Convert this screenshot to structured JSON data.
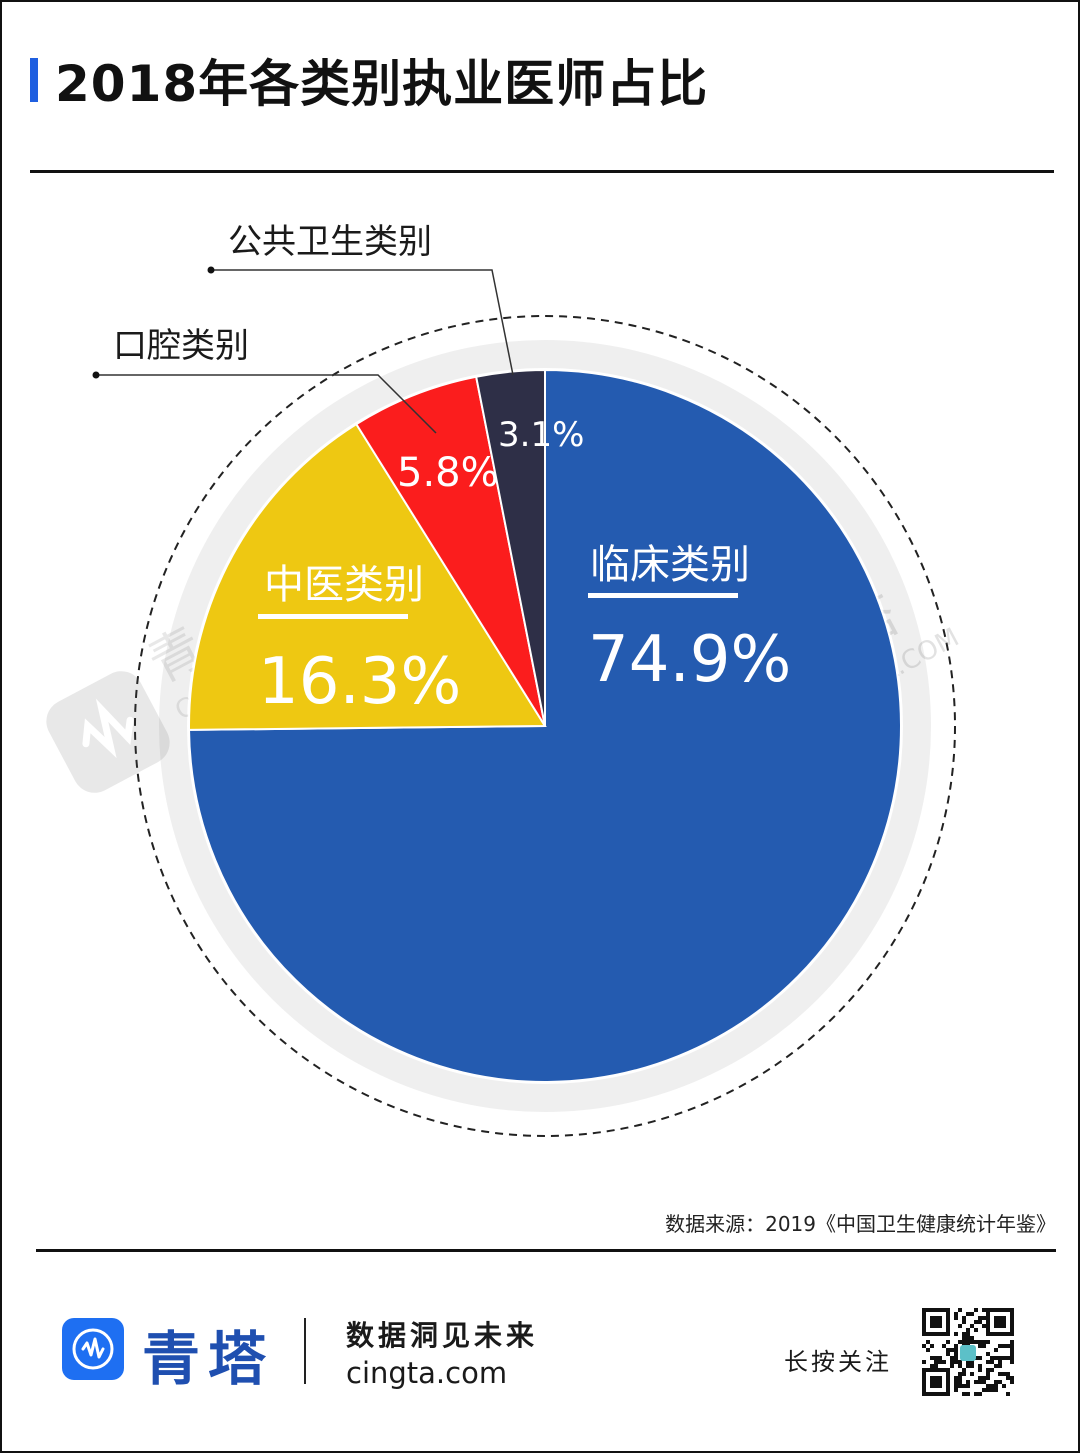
{
  "title": "2018年各类别执业医师占比",
  "colors": {
    "accent": "#1f5fe0",
    "clinical": "#245bb0",
    "tcm": "#eec812",
    "dental": "#fb1d1d",
    "public_health": "#2e2f47",
    "ring": "#efefef"
  },
  "chart_data": {
    "type": "pie",
    "slices": [
      {
        "label": "临床类别",
        "value": 74.9,
        "display": "74.9%",
        "color": "#245bb0"
      },
      {
        "label": "中医类别",
        "value": 16.3,
        "display": "16.3%",
        "color": "#eec812"
      },
      {
        "label": "口腔类别",
        "value": 5.8,
        "display": "5.8%",
        "color": "#fb1d1d"
      },
      {
        "label": "公共卫生类别",
        "value": 3.1,
        "display": "3.1%",
        "color": "#2e2f47"
      }
    ]
  },
  "watermark": {
    "brand": "青 塔",
    "site": "CINGTA.COM"
  },
  "source": "数据来源：2019《中国卫生健康统计年鉴》",
  "footer": {
    "brand": "青塔",
    "slogan": "数据洞见未来",
    "site": "cingta.com",
    "follow": "长按关注"
  }
}
